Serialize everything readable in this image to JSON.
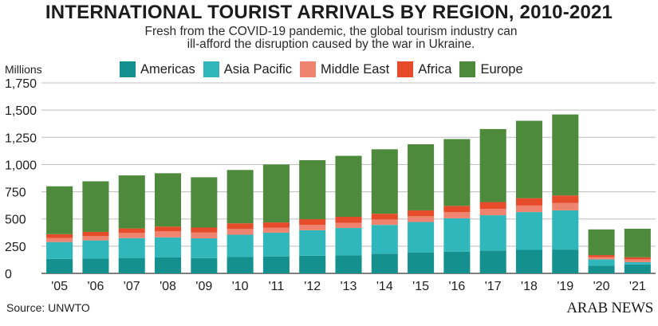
{
  "title": "INTERNATIONAL TOURIST ARRIVALS BY REGION, 2010-2021",
  "subtitle": "Fresh from the COVID-19 pandemic, the global tourism industry can ill-afford the disruption caused by the war in Ukraine.",
  "source": "Source: UNWTO",
  "brand": "ARAB NEWS",
  "chart_data": {
    "type": "bar",
    "stacked": true,
    "title": "INTERNATIONAL TOURIST ARRIVALS BY REGION, 2010-2021",
    "ylabel": "Millions",
    "xlabel": "",
    "ylim": [
      0,
      1750
    ],
    "yticks": [
      0,
      250,
      500,
      750,
      1000,
      1250,
      1500,
      1750
    ],
    "ytick_labels": [
      "0",
      "250",
      "500",
      "750",
      "1,000",
      "1,250",
      "1,500",
      "1,750"
    ],
    "grid": true,
    "legend_position": "top",
    "categories": [
      "'05",
      "'06",
      "'07",
      "'08",
      "'09",
      "'10",
      "'11",
      "'12",
      "'13",
      "'14",
      "'15",
      "'16",
      "'17",
      "'18",
      "'19",
      "'20",
      "'21"
    ],
    "series": [
      {
        "name": "Americas",
        "color": "#14918f",
        "values": [
          133,
          136,
          142,
          147,
          141,
          150,
          156,
          162,
          167,
          181,
          193,
          200,
          210,
          216,
          219,
          70,
          82
        ]
      },
      {
        "name": "Asia Pacific",
        "color": "#2fb7bb",
        "values": [
          155,
          167,
          182,
          184,
          181,
          205,
          218,
          234,
          250,
          264,
          279,
          306,
          324,
          347,
          360,
          59,
          21
        ]
      },
      {
        "name": "Middle East",
        "color": "#ee8370",
        "values": [
          37,
          41,
          47,
          55,
          53,
          55,
          45,
          50,
          47,
          50,
          53,
          56,
          58,
          60,
          67,
          20,
          26
        ]
      },
      {
        "name": "Africa",
        "color": "#e74c2a",
        "values": [
          35,
          37,
          42,
          44,
          46,
          50,
          49,
          52,
          56,
          53,
          54,
          58,
          63,
          68,
          70,
          19,
          19
        ]
      },
      {
        "name": "Europe",
        "color": "#4e8a3c",
        "values": [
          440,
          465,
          487,
          490,
          462,
          490,
          532,
          542,
          560,
          592,
          607,
          614,
          671,
          711,
          744,
          236,
          262
        ]
      }
    ]
  }
}
